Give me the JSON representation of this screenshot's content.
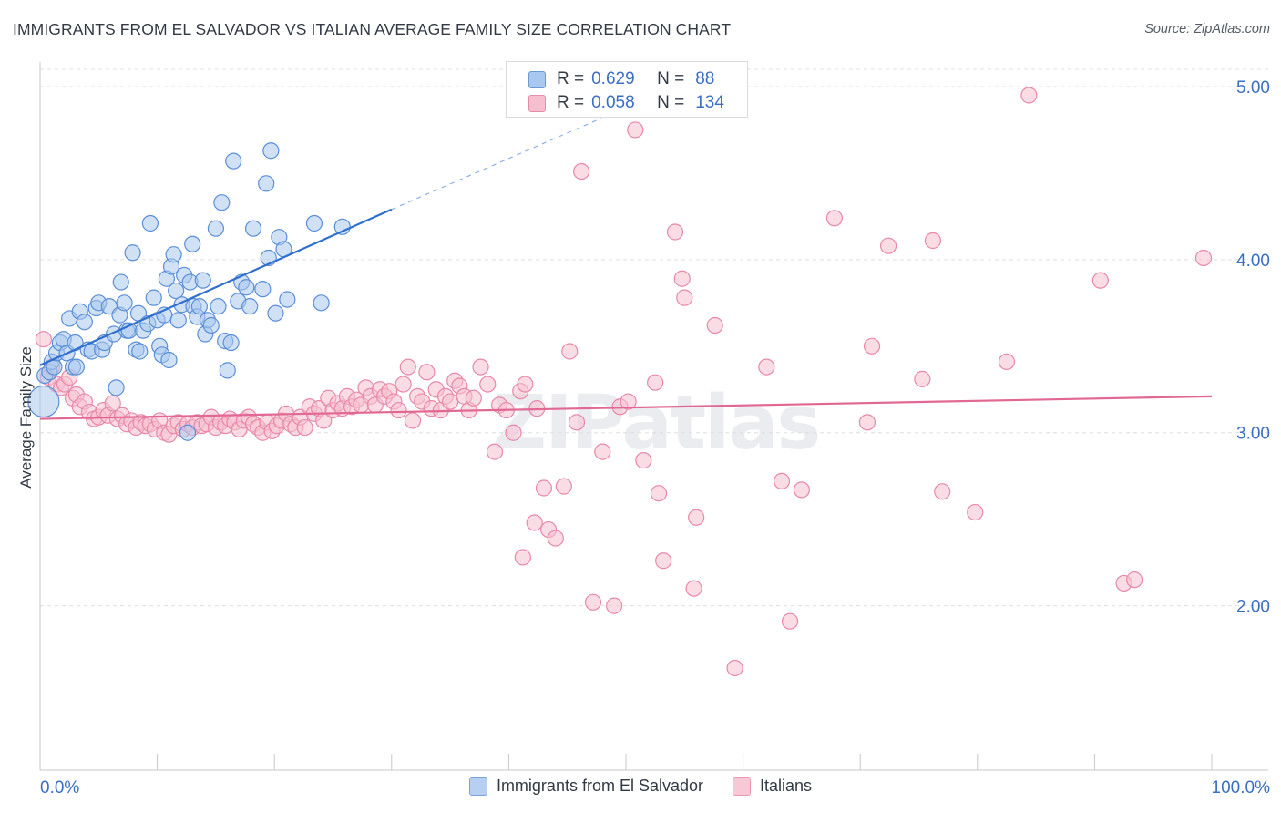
{
  "title": "IMMIGRANTS FROM EL SALVADOR VS ITALIAN AVERAGE FAMILY SIZE CORRELATION CHART",
  "source": "Source: ZipAtlas.com",
  "watermark": "ZIPatlas",
  "legend_top": [
    {
      "r_label": "R =",
      "r_value": "0.629",
      "n_label": "N =",
      "n_value": "88"
    },
    {
      "r_label": "R =",
      "r_value": "0.058",
      "n_label": "N =",
      "n_value": "134"
    }
  ],
  "legend_bottom": [
    "Immigrants from El Salvador",
    "Italians"
  ],
  "colors": {
    "blue_fill": "#a9c8ef",
    "blue_stroke": "#5b8fd6",
    "blue_line": "#2f6fcf",
    "pink_fill": "#f6bfd0",
    "pink_stroke": "#e889aa",
    "pink_line": "#e06892",
    "axis_label": "#3a6fc4",
    "grid": "#dcdfe4"
  },
  "chart_data": {
    "type": "scatter",
    "title": "IMMIGRANTS FROM EL SALVADOR VS ITALIAN AVERAGE FAMILY SIZE CORRELATION CHART",
    "xlabel": "",
    "ylabel": "Average Family Size",
    "xlim": [
      0,
      100
    ],
    "ylim": [
      1.05,
      5.1
    ],
    "x_tick_labels": [
      "0.0%",
      "100.0%"
    ],
    "y_ticks": [
      2.0,
      3.0,
      4.0,
      5.0
    ],
    "y_tick_labels": [
      "2.00",
      "3.00",
      "4.00",
      "5.00"
    ],
    "grid": true,
    "legend_position": "top-center",
    "series": [
      {
        "name": "Immigrants from El Salvador",
        "R": 0.629,
        "N": 88,
        "trend": {
          "x": [
            0,
            30
          ],
          "y": [
            3.39,
            4.29
          ],
          "dashed_to": [
            49,
            4.85
          ]
        },
        "points": [
          [
            0.3,
            3.18
          ],
          [
            0.4,
            3.33
          ],
          [
            0.8,
            3.35
          ],
          [
            1.0,
            3.41
          ],
          [
            1.2,
            3.38
          ],
          [
            1.4,
            3.46
          ],
          [
            1.7,
            3.52
          ],
          [
            2.0,
            3.54
          ],
          [
            2.3,
            3.46
          ],
          [
            2.5,
            3.66
          ],
          [
            2.8,
            3.38
          ],
          [
            3.0,
            3.52
          ],
          [
            3.1,
            3.38
          ],
          [
            3.4,
            3.7
          ],
          [
            3.8,
            3.64
          ],
          [
            4.1,
            3.48
          ],
          [
            4.4,
            3.47
          ],
          [
            4.8,
            3.72
          ],
          [
            5.0,
            3.75
          ],
          [
            5.3,
            3.48
          ],
          [
            5.5,
            3.52
          ],
          [
            5.9,
            3.73
          ],
          [
            6.3,
            3.57
          ],
          [
            6.5,
            3.26
          ],
          [
            6.8,
            3.68
          ],
          [
            6.9,
            3.87
          ],
          [
            7.2,
            3.75
          ],
          [
            7.4,
            3.59
          ],
          [
            7.6,
            3.59
          ],
          [
            7.9,
            4.04
          ],
          [
            8.2,
            3.48
          ],
          [
            8.4,
            3.69
          ],
          [
            8.5,
            3.47
          ],
          [
            8.8,
            3.59
          ],
          [
            9.2,
            3.63
          ],
          [
            9.4,
            4.21
          ],
          [
            9.7,
            3.78
          ],
          [
            10.0,
            3.65
          ],
          [
            10.2,
            3.5
          ],
          [
            10.4,
            3.45
          ],
          [
            10.6,
            3.68
          ],
          [
            10.8,
            3.89
          ],
          [
            11.0,
            3.42
          ],
          [
            11.2,
            3.96
          ],
          [
            11.4,
            4.03
          ],
          [
            11.6,
            3.82
          ],
          [
            11.8,
            3.65
          ],
          [
            12.1,
            3.74
          ],
          [
            12.3,
            3.91
          ],
          [
            12.6,
            3.0
          ],
          [
            12.8,
            3.87
          ],
          [
            13.0,
            4.09
          ],
          [
            13.1,
            3.73
          ],
          [
            13.4,
            3.67
          ],
          [
            13.6,
            3.73
          ],
          [
            13.9,
            3.88
          ],
          [
            14.1,
            3.57
          ],
          [
            14.3,
            3.65
          ],
          [
            14.6,
            3.62
          ],
          [
            15.0,
            4.18
          ],
          [
            15.2,
            3.73
          ],
          [
            15.5,
            4.33
          ],
          [
            15.8,
            3.53
          ],
          [
            16.0,
            3.36
          ],
          [
            16.3,
            3.52
          ],
          [
            16.5,
            4.57
          ],
          [
            16.9,
            3.76
          ],
          [
            17.2,
            3.87
          ],
          [
            17.6,
            3.84
          ],
          [
            17.9,
            3.73
          ],
          [
            18.2,
            4.18
          ],
          [
            19.0,
            3.83
          ],
          [
            19.3,
            4.44
          ],
          [
            19.5,
            4.01
          ],
          [
            19.7,
            4.63
          ],
          [
            20.1,
            3.69
          ],
          [
            20.4,
            4.13
          ],
          [
            20.8,
            4.06
          ],
          [
            21.1,
            3.77
          ],
          [
            23.4,
            4.21
          ],
          [
            24.0,
            3.75
          ],
          [
            25.8,
            4.19
          ]
        ]
      },
      {
        "name": "Italians",
        "R": 0.058,
        "N": 134,
        "trend": {
          "x": [
            0,
            100
          ],
          "y": [
            3.08,
            3.21
          ]
        },
        "points": [
          [
            0.3,
            3.54
          ],
          [
            0.7,
            3.32
          ],
          [
            1.0,
            3.38
          ],
          [
            1.4,
            3.28
          ],
          [
            1.8,
            3.26
          ],
          [
            2.1,
            3.28
          ],
          [
            2.5,
            3.32
          ],
          [
            2.8,
            3.2
          ],
          [
            3.1,
            3.22
          ],
          [
            3.4,
            3.15
          ],
          [
            3.8,
            3.18
          ],
          [
            4.2,
            3.12
          ],
          [
            4.6,
            3.08
          ],
          [
            5.0,
            3.09
          ],
          [
            5.4,
            3.13
          ],
          [
            5.8,
            3.1
          ],
          [
            6.2,
            3.17
          ],
          [
            6.6,
            3.08
          ],
          [
            7.0,
            3.1
          ],
          [
            7.4,
            3.05
          ],
          [
            7.8,
            3.07
          ],
          [
            8.2,
            3.03
          ],
          [
            8.6,
            3.06
          ],
          [
            9.0,
            3.04
          ],
          [
            9.4,
            3.05
          ],
          [
            9.8,
            3.02
          ],
          [
            10.2,
            3.07
          ],
          [
            10.6,
            3.0
          ],
          [
            11.0,
            2.99
          ],
          [
            11.4,
            3.04
          ],
          [
            11.8,
            3.06
          ],
          [
            12.2,
            3.02
          ],
          [
            12.6,
            3.05
          ],
          [
            13.0,
            3.03
          ],
          [
            13.4,
            3.06
          ],
          [
            13.8,
            3.04
          ],
          [
            14.2,
            3.05
          ],
          [
            14.6,
            3.09
          ],
          [
            15.0,
            3.03
          ],
          [
            15.4,
            3.06
          ],
          [
            15.8,
            3.04
          ],
          [
            16.2,
            3.08
          ],
          [
            16.6,
            3.06
          ],
          [
            17.0,
            3.02
          ],
          [
            17.4,
            3.07
          ],
          [
            17.8,
            3.09
          ],
          [
            18.2,
            3.05
          ],
          [
            18.6,
            3.03
          ],
          [
            19.0,
            3.0
          ],
          [
            19.4,
            3.06
          ],
          [
            19.8,
            3.01
          ],
          [
            20.2,
            3.04
          ],
          [
            20.6,
            3.07
          ],
          [
            21.0,
            3.11
          ],
          [
            21.4,
            3.05
          ],
          [
            21.8,
            3.03
          ],
          [
            22.2,
            3.09
          ],
          [
            22.6,
            3.03
          ],
          [
            23.0,
            3.15
          ],
          [
            23.4,
            3.11
          ],
          [
            23.8,
            3.14
          ],
          [
            24.2,
            3.07
          ],
          [
            24.6,
            3.2
          ],
          [
            25.0,
            3.13
          ],
          [
            25.4,
            3.17
          ],
          [
            25.8,
            3.14
          ],
          [
            26.2,
            3.21
          ],
          [
            26.6,
            3.15
          ],
          [
            27.0,
            3.19
          ],
          [
            27.4,
            3.16
          ],
          [
            27.8,
            3.26
          ],
          [
            28.2,
            3.21
          ],
          [
            28.6,
            3.16
          ],
          [
            29.0,
            3.25
          ],
          [
            29.4,
            3.21
          ],
          [
            29.8,
            3.24
          ],
          [
            30.2,
            3.18
          ],
          [
            30.6,
            3.13
          ],
          [
            31.0,
            3.28
          ],
          [
            31.4,
            3.38
          ],
          [
            31.8,
            3.07
          ],
          [
            32.2,
            3.21
          ],
          [
            32.6,
            3.18
          ],
          [
            33.0,
            3.35
          ],
          [
            33.4,
            3.14
          ],
          [
            33.8,
            3.25
          ],
          [
            34.2,
            3.13
          ],
          [
            34.6,
            3.21
          ],
          [
            35.0,
            3.18
          ],
          [
            35.4,
            3.3
          ],
          [
            35.8,
            3.27
          ],
          [
            36.2,
            3.21
          ],
          [
            36.6,
            3.13
          ],
          [
            37.0,
            3.2
          ],
          [
            37.6,
            3.38
          ],
          [
            38.2,
            3.28
          ],
          [
            38.8,
            2.89
          ],
          [
            39.2,
            3.16
          ],
          [
            39.8,
            3.13
          ],
          [
            40.4,
            3.0
          ],
          [
            41.0,
            3.24
          ],
          [
            41.4,
            3.28
          ],
          [
            42.4,
            3.14
          ],
          [
            41.2,
            2.28
          ],
          [
            42.2,
            2.48
          ],
          [
            43.0,
            2.68
          ],
          [
            43.4,
            2.44
          ],
          [
            44.0,
            2.39
          ],
          [
            44.7,
            2.69
          ],
          [
            45.2,
            3.47
          ],
          [
            45.8,
            3.06
          ],
          [
            46.2,
            4.51
          ],
          [
            47.2,
            2.02
          ],
          [
            48.0,
            2.89
          ],
          [
            49.0,
            2.0
          ],
          [
            49.5,
            3.15
          ],
          [
            50.2,
            3.18
          ],
          [
            50.8,
            4.75
          ],
          [
            51.5,
            2.84
          ],
          [
            52.5,
            3.29
          ],
          [
            52.8,
            2.65
          ],
          [
            53.2,
            2.26
          ],
          [
            54.2,
            4.16
          ],
          [
            54.8,
            3.89
          ],
          [
            56.0,
            2.51
          ],
          [
            59.3,
            1.64
          ],
          [
            62.0,
            3.38
          ],
          [
            63.3,
            2.72
          ],
          [
            64.0,
            1.91
          ],
          [
            65.0,
            2.67
          ],
          [
            67.8,
            4.24
          ],
          [
            70.6,
            3.06
          ],
          [
            71.0,
            3.5
          ],
          [
            72.4,
            4.08
          ],
          [
            75.3,
            3.31
          ],
          [
            76.2,
            4.11
          ],
          [
            77.0,
            2.66
          ],
          [
            79.8,
            2.54
          ],
          [
            82.5,
            3.41
          ],
          [
            84.4,
            4.95
          ],
          [
            90.5,
            3.88
          ],
          [
            92.5,
            2.13
          ],
          [
            93.4,
            2.15
          ],
          [
            99.3,
            4.01
          ],
          [
            55.8,
            2.1
          ],
          [
            57.6,
            3.62
          ],
          [
            55.0,
            3.78
          ]
        ]
      }
    ]
  }
}
